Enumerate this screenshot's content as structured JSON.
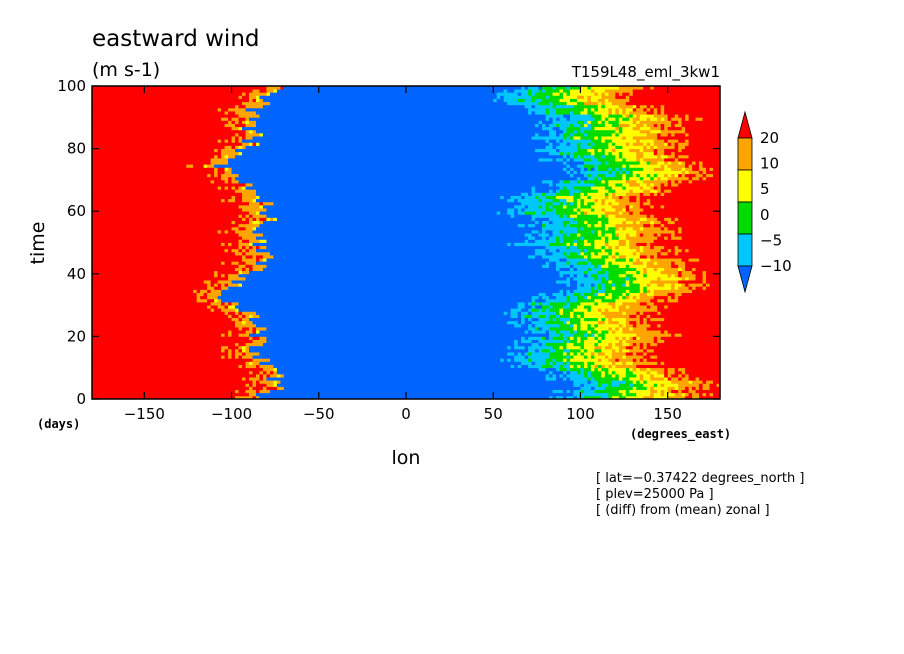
{
  "chart_data": {
    "type": "heatmap",
    "title": "eastward wind",
    "units": "(m s-1)",
    "run_label": "T159L48_eml_3kw1",
    "xlabel": "lon",
    "ylabel": "time",
    "x_units": "(degrees_east)",
    "y_units": "(days)",
    "xlim": [
      -180,
      180
    ],
    "ylim": [
      0,
      100
    ],
    "x_ticks": [
      -150,
      -100,
      -50,
      0,
      50,
      100,
      150
    ],
    "y_ticks": [
      0,
      20,
      40,
      60,
      80,
      100
    ],
    "colorbar": {
      "levels": [
        -10,
        -5,
        0,
        5,
        10,
        20
      ],
      "level_labels": [
        "20",
        "10",
        "5",
        "0",
        "−5",
        "−10"
      ],
      "colors": [
        "#0064ff",
        "#00c8ff",
        "#00dc00",
        "#ffff00",
        "#ffa500",
        "#ff0000"
      ],
      "extend": "both"
    },
    "annotations": [
      "[ lat=−0.37422 degrees_north ]",
      "[ plev=25000 Pa ]",
      "[ (diff) from (mean) zonal ]"
    ],
    "grid": false,
    "colorbar_placement": "right"
  }
}
